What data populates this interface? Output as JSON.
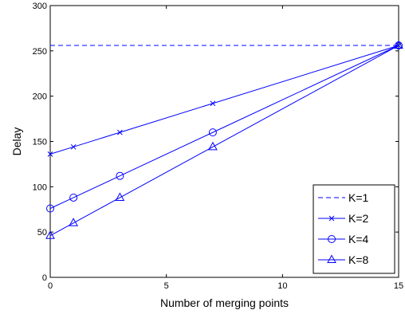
{
  "chart_data": {
    "type": "line",
    "title": "",
    "xlabel": "Number of merging points",
    "ylabel": "Delay",
    "xlim": [
      0,
      15
    ],
    "ylim": [
      0,
      300
    ],
    "xticks": [
      0,
      5,
      10,
      15
    ],
    "yticks": [
      0,
      50,
      100,
      150,
      200,
      250,
      300
    ],
    "grid": false,
    "legend_position": "bottom-right",
    "color": "#0000ff",
    "series": [
      {
        "name": "K=1",
        "style": "dashed",
        "marker": "none",
        "x": [
          0,
          15
        ],
        "y": [
          256,
          256
        ]
      },
      {
        "name": "K=2",
        "style": "solid",
        "marker": "x",
        "x": [
          0,
          1,
          3,
          7,
          15
        ],
        "y": [
          136,
          144,
          160,
          192,
          256
        ]
      },
      {
        "name": "K=4",
        "style": "solid",
        "marker": "circle",
        "x": [
          0,
          1,
          3,
          7,
          15
        ],
        "y": [
          76,
          88,
          112,
          160,
          256
        ]
      },
      {
        "name": "K=8",
        "style": "solid",
        "marker": "triangle",
        "x": [
          0,
          1,
          3,
          7,
          15
        ],
        "y": [
          46,
          60,
          88,
          144,
          256
        ]
      }
    ]
  }
}
